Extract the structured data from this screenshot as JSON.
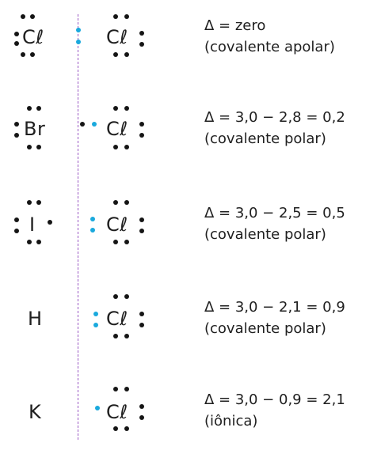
{
  "rows": [
    {
      "left": "Cℓ",
      "right": "Cℓ",
      "equation": "Δ = zero",
      "bond": "(covalente apolar)"
    },
    {
      "left": "Br",
      "right": "Cℓ",
      "equation": "Δ = 3,0 − 2,8 = 0,2",
      "bond": "(covalente polar)"
    },
    {
      "left": "I",
      "right": "Cℓ",
      "equation": "Δ = 3,0 − 2,5 = 0,5",
      "bond": "(covalente polar)"
    },
    {
      "left": "H",
      "right": "Cℓ",
      "equation": "Δ = 3,0 − 2,1 = 0,9",
      "bond": "(covalente polar)"
    },
    {
      "left": "K",
      "right": "Cℓ",
      "equation": "Δ = 3,0 − 0,9 = 2,1",
      "bond": "(iônica)"
    }
  ],
  "colors": {
    "shared_pair": "#1aa9dd",
    "electrons": "#151515",
    "divider": "#9b59c4"
  }
}
